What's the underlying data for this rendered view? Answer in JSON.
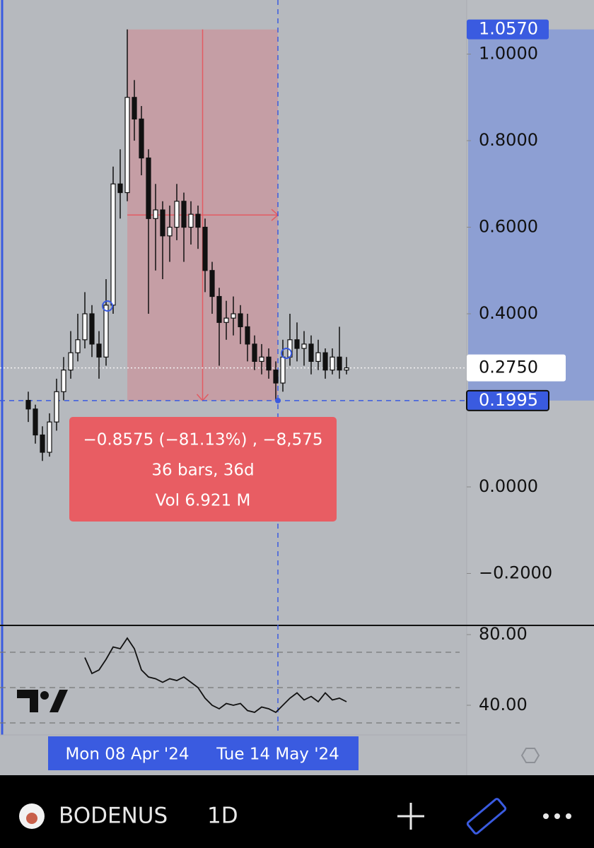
{
  "chart_data": [
    {
      "type": "candlestick",
      "open": [
        0.2,
        0.18,
        0.12,
        0.08,
        0.15,
        0.22,
        0.27,
        0.31,
        0.34,
        0.4,
        0.33,
        0.3,
        0.42,
        0.7,
        0.68,
        0.9,
        0.85,
        0.76,
        0.62,
        0.64,
        0.58,
        0.6,
        0.66,
        0.6,
        0.63,
        0.6,
        0.5,
        0.44,
        0.38,
        0.39,
        0.4,
        0.37,
        0.33,
        0.29,
        0.3,
        0.27,
        0.24,
        0.3,
        0.34,
        0.32,
        0.33,
        0.29,
        0.31,
        0.27,
        0.3,
        0.27
      ],
      "high": [
        0.22,
        0.19,
        0.14,
        0.17,
        0.25,
        0.3,
        0.36,
        0.4,
        0.45,
        0.42,
        0.36,
        0.48,
        0.74,
        0.78,
        1.057,
        0.94,
        0.88,
        0.78,
        0.7,
        0.66,
        0.65,
        0.7,
        0.68,
        0.66,
        0.65,
        0.62,
        0.52,
        0.46,
        0.43,
        0.44,
        0.42,
        0.4,
        0.35,
        0.33,
        0.32,
        0.29,
        0.34,
        0.4,
        0.38,
        0.36,
        0.35,
        0.34,
        0.32,
        0.32,
        0.37,
        0.3
      ],
      "low": [
        0.15,
        0.1,
        0.06,
        0.07,
        0.13,
        0.2,
        0.25,
        0.29,
        0.32,
        0.3,
        0.25,
        0.28,
        0.4,
        0.62,
        0.66,
        0.8,
        0.72,
        0.4,
        0.5,
        0.48,
        0.52,
        0.57,
        0.52,
        0.56,
        0.55,
        0.45,
        0.4,
        0.28,
        0.34,
        0.35,
        0.33,
        0.29,
        0.27,
        0.26,
        0.25,
        0.1995,
        0.22,
        0.28,
        0.29,
        0.28,
        0.26,
        0.27,
        0.25,
        0.26,
        0.25,
        0.26
      ],
      "close": [
        0.18,
        0.12,
        0.08,
        0.15,
        0.22,
        0.27,
        0.31,
        0.34,
        0.4,
        0.33,
        0.3,
        0.42,
        0.7,
        0.68,
        0.9,
        0.85,
        0.76,
        0.62,
        0.64,
        0.58,
        0.6,
        0.66,
        0.6,
        0.63,
        0.6,
        0.5,
        0.44,
        0.38,
        0.39,
        0.4,
        0.37,
        0.33,
        0.29,
        0.3,
        0.27,
        0.24,
        0.3,
        0.34,
        0.32,
        0.33,
        0.29,
        0.31,
        0.27,
        0.3,
        0.27,
        0.275
      ],
      "ylim": [
        -0.32,
        1.125
      ],
      "yticks": [
        {
          "value": 1.0,
          "label": "1.0000"
        },
        {
          "value": 0.8,
          "label": "0.8000"
        },
        {
          "value": 0.6,
          "label": "0.6000"
        },
        {
          "value": 0.4,
          "label": "0.4000"
        },
        {
          "value": 0.0,
          "label": "0.0000"
        },
        {
          "value": -0.2,
          "label": "−0.2000"
        }
      ],
      "last_price": {
        "value": 0.275,
        "label": "0.2750"
      },
      "range_high": {
        "value": 1.057,
        "label": "1.0570"
      },
      "range_low": {
        "value": 0.1995,
        "label": "0.1995"
      },
      "measure_label": [
        "−0.8575 (−81.13%) , −8,575",
        "36 bars, 36d",
        "Vol 6.921 M"
      ],
      "x_labels": [
        "Mon 08 Apr '24",
        "Tue 14 May '24"
      ]
    },
    {
      "type": "line",
      "values": [
        null,
        null,
        null,
        null,
        null,
        null,
        null,
        null,
        67,
        58,
        60,
        66,
        73,
        72,
        78,
        72,
        60,
        56,
        55,
        53,
        55,
        54,
        56,
        53,
        50,
        44,
        40,
        38,
        41,
        40,
        41,
        37,
        36,
        39,
        38,
        36,
        40,
        44,
        47,
        43,
        45,
        42,
        47,
        43,
        44,
        42
      ],
      "ylim": [
        23.2,
        85.2
      ],
      "yticks": [
        {
          "value": 80,
          "label": "80.00"
        },
        {
          "value": 40,
          "label": "40.00"
        }
      ],
      "levels": [
        70,
        50,
        30
      ]
    }
  ],
  "toolbar": {
    "symbol": "BODENUS",
    "interval": "1D"
  }
}
